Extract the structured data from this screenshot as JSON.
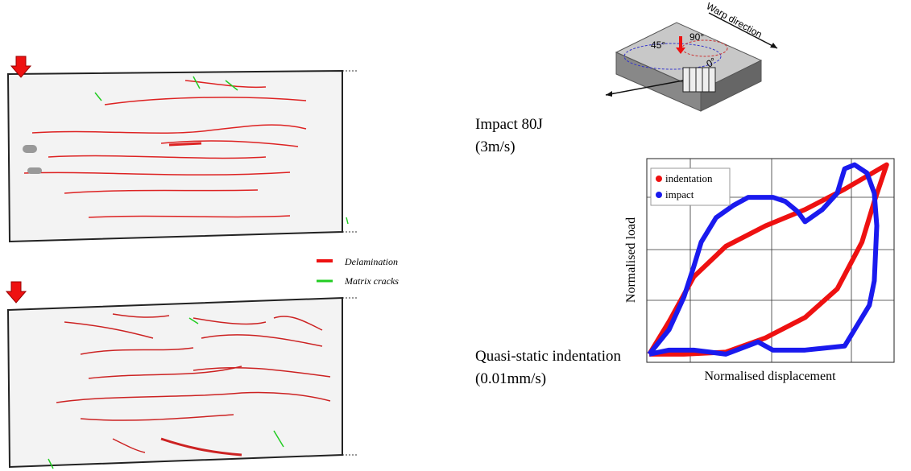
{
  "figure": {
    "top_specimen": {
      "label": "Impact 80J",
      "rate": "(3m/s)"
    },
    "bottom_specimen": {
      "label": "Quasi-static indentation",
      "rate": "(0.01mm/s)"
    },
    "damage_legend": {
      "delamination": "Delamination",
      "matrix_cracks": "Matrix cracks"
    },
    "schematic": {
      "direction": "Warp direction",
      "angle_45": "45°",
      "angle_90": "90°",
      "angle_0": "0°"
    }
  },
  "chart_data": {
    "type": "line",
    "xlabel": "Normalised displacement",
    "ylabel": "Normalised load",
    "xlim": [
      0,
      1
    ],
    "ylim": [
      0,
      1
    ],
    "grid": true,
    "legend": "upper left",
    "series": [
      {
        "name": "indentation",
        "color": "#ee1111",
        "x": [
          0.01,
          0.09,
          0.19,
          0.32,
          0.48,
          0.64,
          0.8,
          0.97,
          0.92,
          0.87,
          0.77,
          0.64,
          0.48,
          0.32,
          0.15,
          0.01
        ],
        "values": [
          0.04,
          0.2,
          0.42,
          0.57,
          0.67,
          0.75,
          0.85,
          0.97,
          0.79,
          0.59,
          0.36,
          0.22,
          0.12,
          0.05,
          0.04,
          0.04
        ]
      },
      {
        "name": "impact",
        "color": "#1a1aee",
        "x": [
          0.01,
          0.09,
          0.15,
          0.19,
          0.22,
          0.28,
          0.35,
          0.41,
          0.51,
          0.56,
          0.61,
          0.64,
          0.71,
          0.77,
          0.8,
          0.84,
          0.89,
          0.92,
          0.93,
          0.92,
          0.9,
          0.84,
          0.8,
          0.64,
          0.51,
          0.45,
          0.32,
          0.19,
          0.09,
          0.01
        ],
        "values": [
          0.04,
          0.16,
          0.32,
          0.47,
          0.59,
          0.71,
          0.77,
          0.81,
          0.81,
          0.79,
          0.74,
          0.69,
          0.75,
          0.83,
          0.95,
          0.97,
          0.93,
          0.83,
          0.67,
          0.4,
          0.28,
          0.16,
          0.08,
          0.06,
          0.06,
          0.1,
          0.04,
          0.06,
          0.06,
          0.04
        ]
      }
    ]
  }
}
